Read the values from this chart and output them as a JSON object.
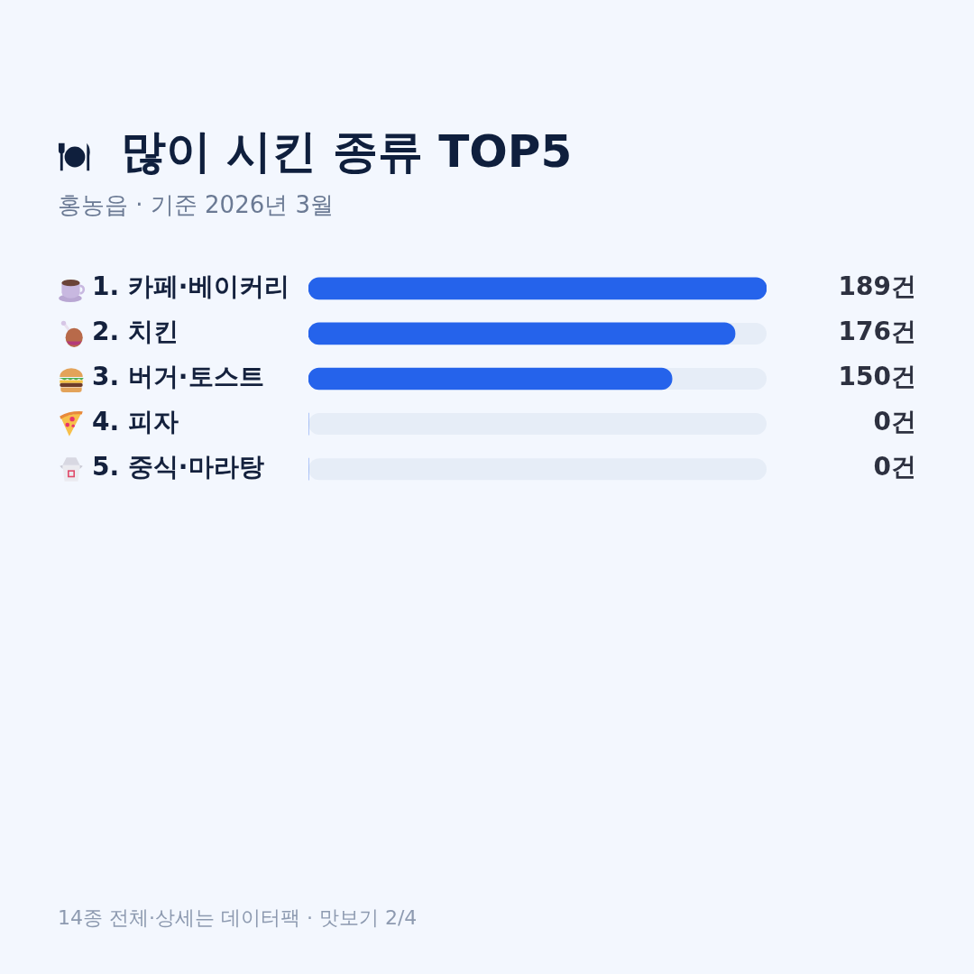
{
  "chart_data": {
    "type": "bar",
    "orientation": "horizontal",
    "title": "많이 시킨 종류 TOP5",
    "subtitle": "홍농읍 · 기준 2026년 3월",
    "categories": [
      "1. 카페·베이커리",
      "2. 치킨",
      "3. 버거·토스트",
      "4. 피자",
      "5. 중식·마라탕"
    ],
    "values": [
      189,
      176,
      150,
      0,
      0
    ],
    "color": "#2563eb",
    "value_labels": [
      "189건",
      "176건",
      "150건",
      "0건",
      "0건"
    ],
    "xlim": [
      0,
      189
    ],
    "tick_labels": "y",
    "grid": false,
    "legend": false,
    "annotations": [
      "14종 전체·상세는 데이터팩 · 맛보기 2/4"
    ]
  }
}
